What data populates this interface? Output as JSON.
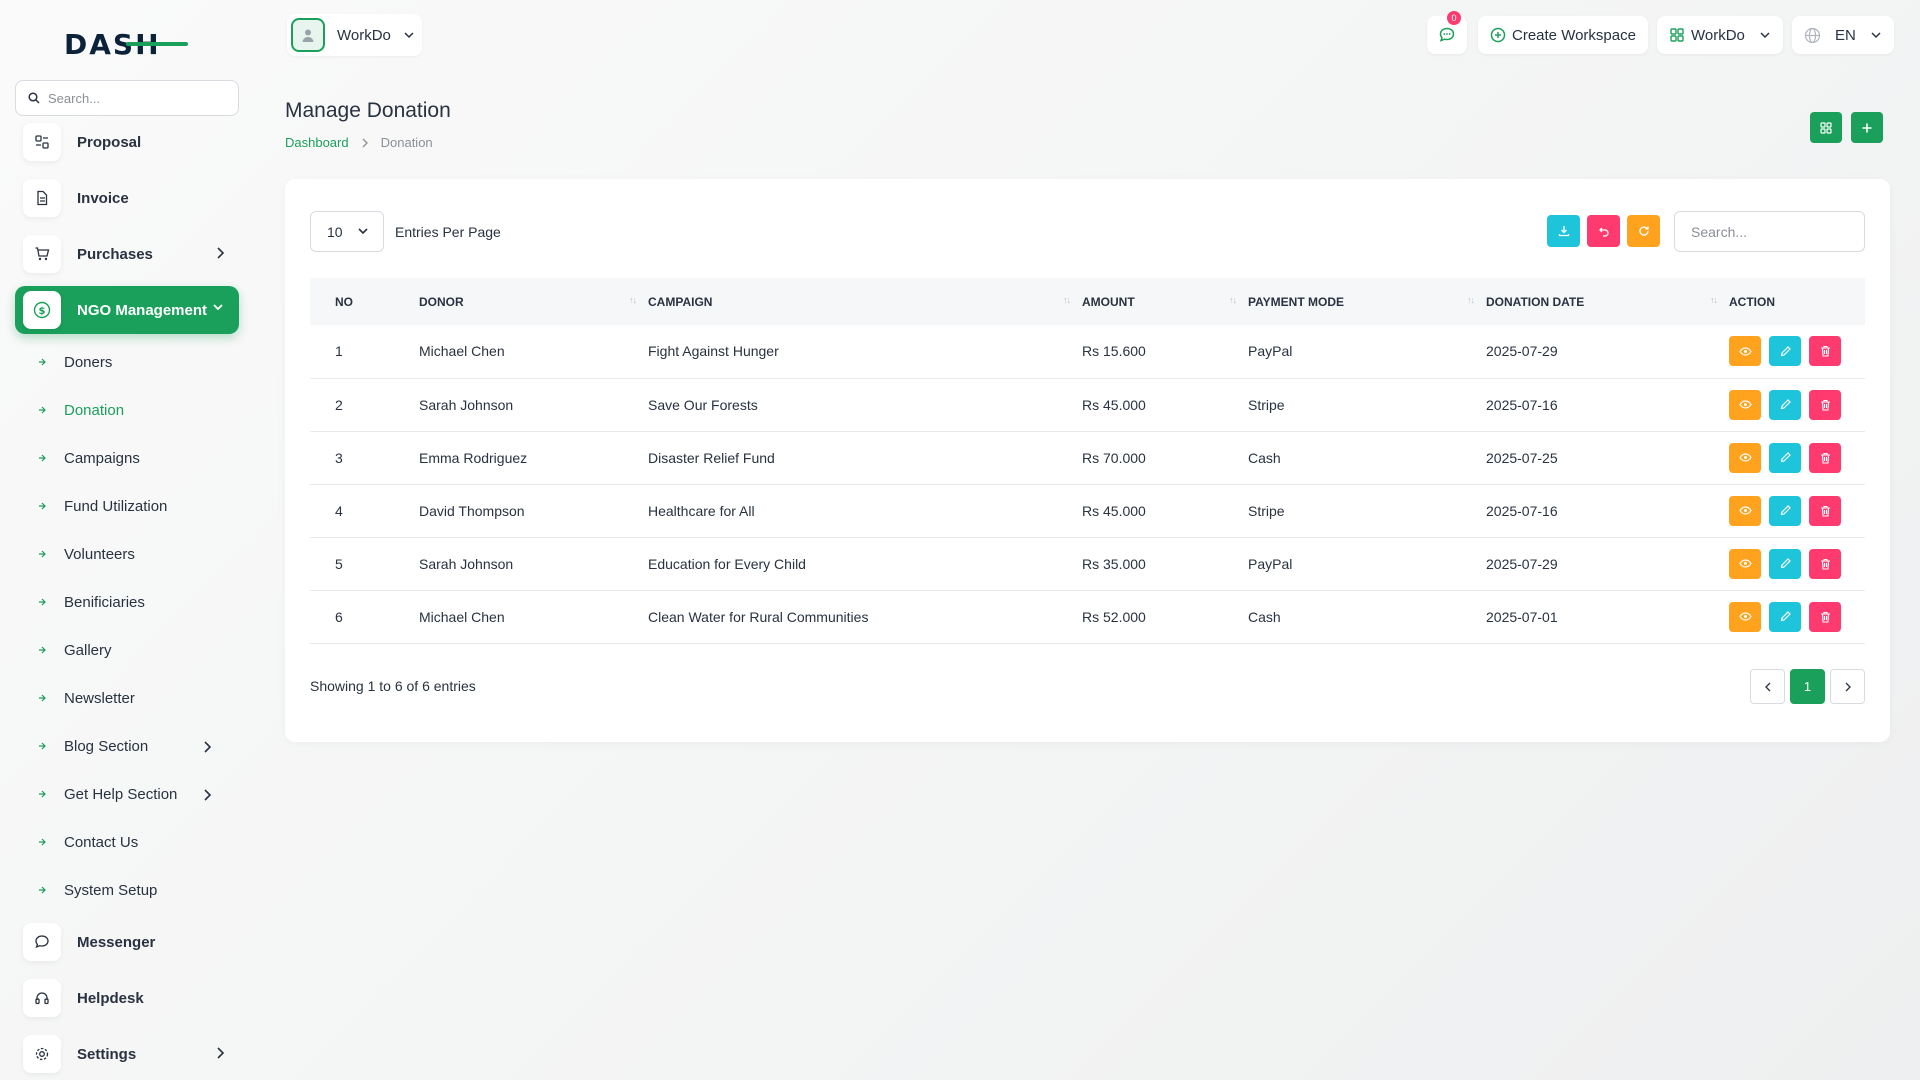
{
  "brand": {
    "logo_text": "DASH",
    "accent": "#1aa05a"
  },
  "sidebar": {
    "search_placeholder": "Search...",
    "top_items": [
      {
        "label": "Proposal",
        "icon": "proposal-icon"
      },
      {
        "label": "Invoice",
        "icon": "file-icon"
      },
      {
        "label": "Purchases",
        "icon": "cart-icon"
      }
    ],
    "ngo": {
      "label": "NGO Management",
      "icon": "dollar-icon"
    },
    "sub_items": [
      {
        "label": "Doners"
      },
      {
        "label": "Donation"
      },
      {
        "label": "Campaigns"
      },
      {
        "label": "Fund Utilization"
      },
      {
        "label": "Volunteers"
      },
      {
        "label": "Benificiaries"
      },
      {
        "label": "Gallery"
      },
      {
        "label": "Newsletter"
      },
      {
        "label": "Blog Section"
      },
      {
        "label": "Get Help Section"
      },
      {
        "label": "Contact Us"
      },
      {
        "label": "System Setup"
      }
    ],
    "bottom_items": [
      {
        "label": "Messenger",
        "icon": "chat-icon"
      },
      {
        "label": "Helpdesk",
        "icon": "headset-icon"
      },
      {
        "label": "Settings",
        "icon": "gear-icon"
      }
    ]
  },
  "topbar": {
    "workspace": "WorkDo",
    "notifications_count": "0",
    "create_workspace": "Create Workspace",
    "workdo_menu": "WorkDo",
    "language": "EN"
  },
  "page": {
    "title": "Manage Donation",
    "breadcrumb": [
      "Dashboard",
      "Donation"
    ]
  },
  "table": {
    "per_page": "10",
    "per_page_label": "Entries Per Page",
    "search_placeholder": "Search...",
    "columns": [
      "No",
      "Donor",
      "Campaign",
      "Amount",
      "Payment Mode",
      "Donation Date",
      "Action"
    ],
    "rows": [
      {
        "no": "1",
        "donor": "Michael Chen",
        "campaign": "Fight Against Hunger",
        "amount": "Rs 15.600",
        "mode": "PayPal",
        "date": "2025-07-29"
      },
      {
        "no": "2",
        "donor": "Sarah Johnson",
        "campaign": "Save Our Forests",
        "amount": "Rs 45.000",
        "mode": "Stripe",
        "date": "2025-07-16"
      },
      {
        "no": "3",
        "donor": "Emma Rodriguez",
        "campaign": "Disaster Relief Fund",
        "amount": "Rs 70.000",
        "mode": "Cash",
        "date": "2025-07-25"
      },
      {
        "no": "4",
        "donor": "David Thompson",
        "campaign": "Healthcare for All",
        "amount": "Rs 45.000",
        "mode": "Stripe",
        "date": "2025-07-16"
      },
      {
        "no": "5",
        "donor": "Sarah Johnson",
        "campaign": "Education for Every Child",
        "amount": "Rs 35.000",
        "mode": "PayPal",
        "date": "2025-07-29"
      },
      {
        "no": "6",
        "donor": "Michael Chen",
        "campaign": "Clean Water for Rural Communities",
        "amount": "Rs 52.000",
        "mode": "Cash",
        "date": "2025-07-01"
      }
    ],
    "showing": "Showing 1 to 6 of 6 entries",
    "current_page": "1"
  }
}
